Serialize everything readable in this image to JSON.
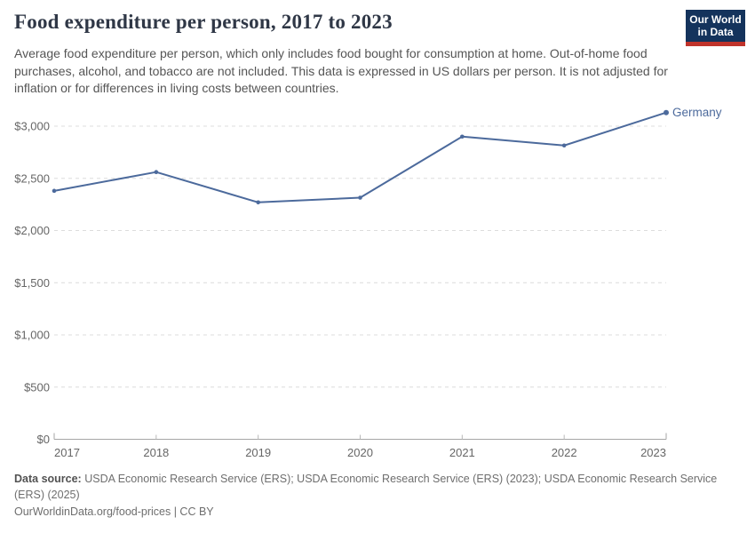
{
  "header": {
    "title": "Food expenditure per person, 2017 to 2023",
    "subtitle": "Average food expenditure per person, which only includes food bought for consumption at home. Out-of-home food purchases, alcohol, and tobacco are not included. This data is expressed in US dollars per person. It is not adjusted for inflation or for differences in living costs between countries.",
    "logo": {
      "line1": "Our World",
      "line2": "in Data",
      "bg_color": "#14335c",
      "accent_color": "#c0332b"
    }
  },
  "chart_data": {
    "type": "line",
    "title": "Food expenditure per person, 2017 to 2023",
    "x": [
      2017,
      2018,
      2019,
      2020,
      2021,
      2022,
      2023
    ],
    "xtick_labels": [
      "2017",
      "2018",
      "2019",
      "2020",
      "2021",
      "2022",
      "2023"
    ],
    "series": [
      {
        "name": "Germany",
        "color": "#4c6a9c",
        "values": [
          2380,
          2560,
          2270,
          2315,
          2900,
          2815,
          3130
        ]
      }
    ],
    "xlabel": "",
    "ylabel": "",
    "ylim": [
      0,
      3000
    ],
    "ytick_interval": 500,
    "ytick_labels": [
      "$0",
      "$500",
      "$1,000",
      "$1,500",
      "$2,000",
      "$2,500",
      "$3,000"
    ],
    "grid": "horizontal dashed",
    "legend_position": "end-of-line-label",
    "unit": "US dollars per person"
  },
  "footer": {
    "source_label": "Data source:",
    "source_text": " USDA Economic Research Service (ERS); USDA Economic Research Service (ERS) (2023); USDA Economic Research Service (ERS) (2025)",
    "link_text": "OurWorldinData.org/food-prices | CC BY"
  }
}
